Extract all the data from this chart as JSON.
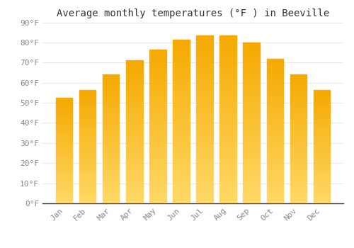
{
  "title": "Average monthly temperatures (°F ) in Beeville",
  "months": [
    "Jan",
    "Feb",
    "Mar",
    "Apr",
    "May",
    "Jun",
    "Jul",
    "Aug",
    "Sep",
    "Oct",
    "Nov",
    "Dec"
  ],
  "values": [
    52.5,
    56.5,
    64,
    71,
    76.5,
    81.5,
    83.5,
    83.5,
    80,
    72,
    64,
    56.5
  ],
  "bar_color_top": "#F5A800",
  "bar_color_bottom": "#FFD966",
  "background_color": "#FFFFFF",
  "grid_color": "#E8E8E8",
  "ylim": [
    0,
    90
  ],
  "yticks": [
    0,
    10,
    20,
    30,
    40,
    50,
    60,
    70,
    80,
    90
  ],
  "ytick_labels": [
    "0°F",
    "10°F",
    "20°F",
    "30°F",
    "40°F",
    "50°F",
    "60°F",
    "70°F",
    "80°F",
    "90°F"
  ],
  "title_fontsize": 10,
  "tick_fontsize": 8,
  "tick_color": "#888888",
  "font_family": "monospace",
  "bar_width": 0.7
}
